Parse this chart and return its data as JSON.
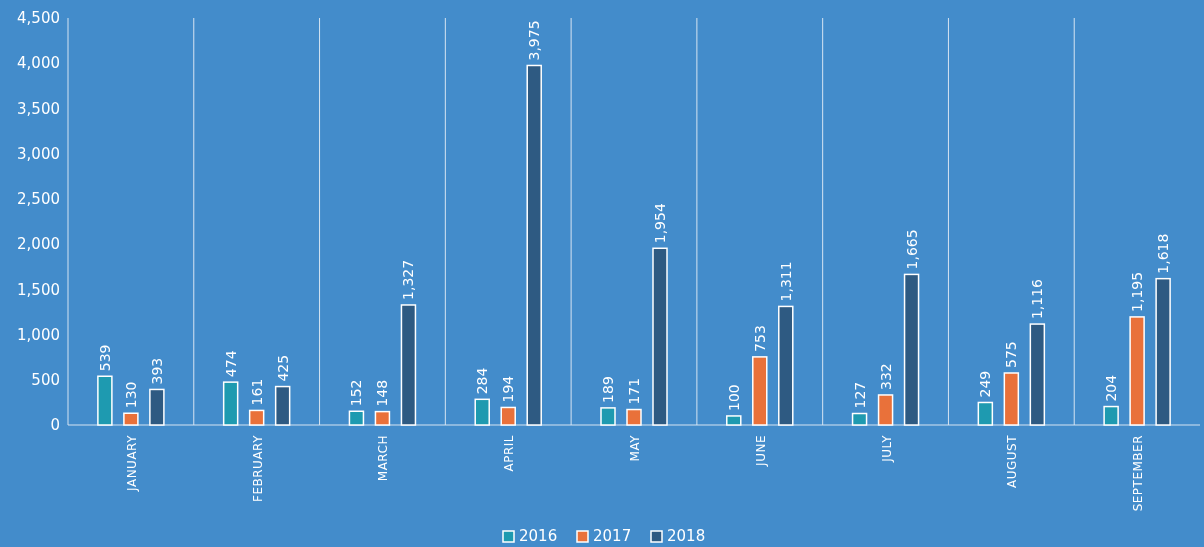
{
  "chart_data": {
    "type": "bar",
    "categories": [
      "JANUARY",
      "FEBRUARY",
      "MARCH",
      "APRIL",
      "MAY",
      "JUNE",
      "JULY",
      "AUGUST",
      "SEPTEMBER"
    ],
    "series": [
      {
        "name": "2016",
        "color": "#1e9ab0",
        "values": [
          539,
          474,
          152,
          284,
          189,
          100,
          127,
          249,
          204
        ],
        "value_labels": [
          "539",
          "474",
          "152",
          "284",
          "189",
          "100",
          "127",
          "249",
          "204"
        ]
      },
      {
        "name": "2017",
        "color": "#e9713a",
        "values": [
          130,
          161,
          148,
          194,
          171,
          753,
          332,
          575,
          1195
        ],
        "value_labels": [
          "130",
          "161",
          "148",
          "194",
          "171",
          "753",
          "332",
          "575",
          "1,195"
        ]
      },
      {
        "name": "2018",
        "color": "#2e5a82",
        "values": [
          393,
          425,
          1327,
          3975,
          1954,
          1311,
          1665,
          1116,
          1618
        ],
        "value_labels": [
          "393",
          "425",
          "1,327",
          "3,975",
          "1,954",
          "1,311",
          "1,665",
          "1,116",
          "1,618"
        ]
      }
    ],
    "ylim": [
      0,
      4500
    ],
    "yticks": [
      0,
      {
        "value": 500,
        "label": "500"
      },
      {
        "value": 1000,
        "label": "1,000"
      },
      {
        "value": 1500,
        "label": "1,500"
      },
      {
        "value": 2000,
        "label": "2,000"
      },
      {
        "value": 2500,
        "label": "2,500"
      },
      {
        "value": 3000,
        "label": "3,000"
      },
      {
        "value": 3500,
        "label": "3,500"
      },
      {
        "value": 4000,
        "label": "4,000"
      },
      {
        "value": 4500,
        "label": "4,500"
      }
    ],
    "grid": "x",
    "legend": "bottom"
  }
}
